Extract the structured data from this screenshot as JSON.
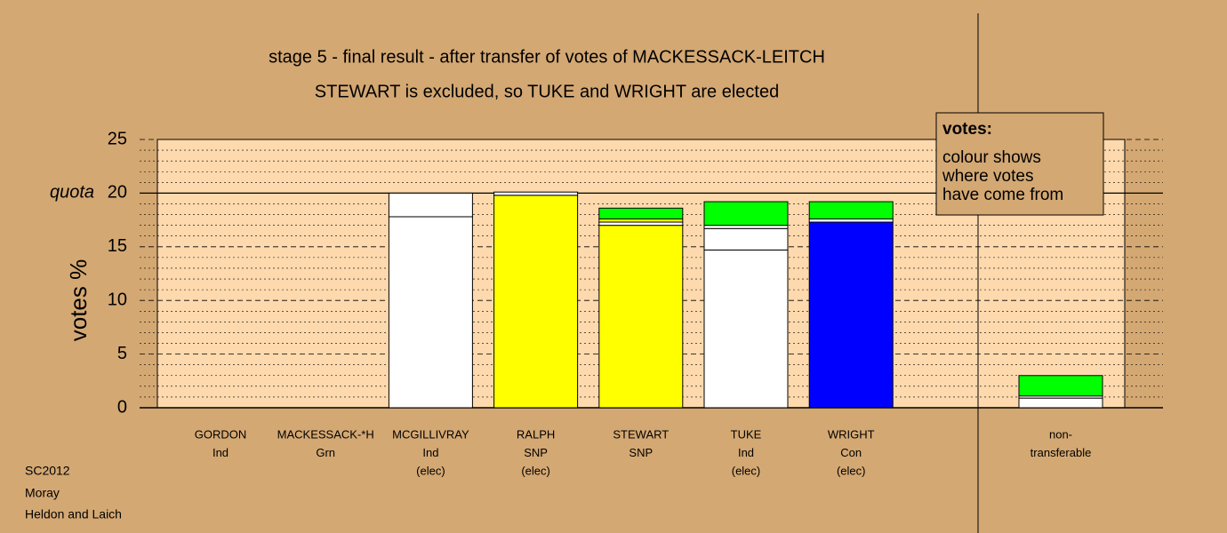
{
  "chart_data": {
    "type": "stacked-bar",
    "title": "stage 5 - final result - after transfer of votes of MACKESSACK-LEITCH",
    "subtitle": "STEWART is excluded, so TUKE and WRIGHT are elected",
    "y_label": "votes %",
    "ylim": [
      0,
      25
    ],
    "yticks": [
      0,
      5,
      10,
      15,
      20,
      25
    ],
    "quota": {
      "value": 20,
      "label": "quota"
    },
    "grid": true,
    "categories": [
      [
        "GORDON",
        "Ind"
      ],
      [
        "MACKESSACK-*H",
        "Grn"
      ],
      [
        "MCGILLIVRAY",
        "Ind",
        "(elec)"
      ],
      [
        "RALPH",
        "SNP",
        "(elec)"
      ],
      [
        "STEWART",
        "SNP"
      ],
      [
        "TUKE",
        "Ind",
        "(elec)"
      ],
      [
        "WRIGHT",
        "Con",
        "(elec)"
      ],
      [
        "non-",
        "transferable"
      ]
    ],
    "stacks": [
      [],
      [],
      [
        {
          "value": 17.8,
          "color": "#ffffff"
        },
        {
          "value": 2.2,
          "color": "#ffffff"
        }
      ],
      [
        {
          "value": 19.8,
          "color": "#ffff00"
        },
        {
          "value": 0.3,
          "color": "#ffffff"
        }
      ],
      [
        {
          "value": 17.0,
          "color": "#ffff00"
        },
        {
          "value": 0.3,
          "color": "#ffffff"
        },
        {
          "value": 0.3,
          "color": "#ffff00"
        },
        {
          "value": 1.0,
          "color": "#00ff00"
        }
      ],
      [
        {
          "value": 14.7,
          "color": "#ffffff"
        },
        {
          "value": 2.0,
          "color": "#ffffff"
        },
        {
          "value": 0.3,
          "color": "#ffffff"
        },
        {
          "value": 2.2,
          "color": "#00ff00"
        }
      ],
      [
        {
          "value": 17.3,
          "color": "#0000ff"
        },
        {
          "value": 0.3,
          "color": "#ffffff"
        },
        {
          "value": 1.6,
          "color": "#00ff00"
        }
      ],
      [
        {
          "value": 0.9,
          "color": "#ffffff"
        },
        {
          "value": 0.2,
          "color": "#ffffff"
        },
        {
          "value": 1.9,
          "color": "#00ff00"
        }
      ]
    ],
    "legend": {
      "title": "votes:",
      "lines": [
        "colour shows",
        "where votes",
        "have come from"
      ]
    },
    "footer": [
      "SC2012",
      "Moray",
      "Heldon and Laich"
    ]
  }
}
